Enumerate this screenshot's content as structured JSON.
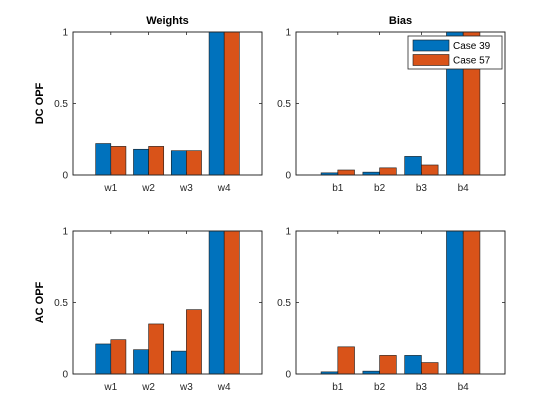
{
  "colors": {
    "Case 39": "#0072BD",
    "Case 57": "#D95319"
  },
  "chart_data": [
    {
      "type": "bar",
      "title": "Weights",
      "ylabel": "DC OPF",
      "categories": [
        "w1",
        "w2",
        "w3",
        "w4"
      ],
      "ylim": [
        0,
        1
      ],
      "yticks": [
        0,
        0.5,
        1
      ],
      "series": [
        {
          "name": "Case 39",
          "values": [
            0.22,
            0.18,
            0.17,
            1.0
          ]
        },
        {
          "name": "Case 57",
          "values": [
            0.2,
            0.2,
            0.17,
            1.0
          ]
        }
      ],
      "legend": null
    },
    {
      "type": "bar",
      "title": "Bias",
      "ylabel": "",
      "categories": [
        "b1",
        "b2",
        "b3",
        "b4"
      ],
      "ylim": [
        0,
        1
      ],
      "yticks": [
        0,
        0.5,
        1
      ],
      "series": [
        {
          "name": "Case 39",
          "values": [
            0.015,
            0.02,
            0.13,
            1.0
          ]
        },
        {
          "name": "Case 57",
          "values": [
            0.035,
            0.05,
            0.07,
            1.0
          ]
        }
      ],
      "legend": "top-right"
    },
    {
      "type": "bar",
      "title": "",
      "ylabel": "AC OPF",
      "categories": [
        "w1",
        "w2",
        "w3",
        "w4"
      ],
      "ylim": [
        0,
        1
      ],
      "yticks": [
        0,
        0.5,
        1
      ],
      "series": [
        {
          "name": "Case 39",
          "values": [
            0.21,
            0.17,
            0.16,
            1.0
          ]
        },
        {
          "name": "Case 57",
          "values": [
            0.24,
            0.35,
            0.45,
            1.0
          ]
        }
      ],
      "legend": null
    },
    {
      "type": "bar",
      "title": "",
      "ylabel": "",
      "categories": [
        "b1",
        "b2",
        "b3",
        "b4"
      ],
      "ylim": [
        0,
        1
      ],
      "yticks": [
        0,
        0.5,
        1
      ],
      "series": [
        {
          "name": "Case 39",
          "values": [
            0.015,
            0.02,
            0.13,
            1.0
          ]
        },
        {
          "name": "Case 57",
          "values": [
            0.19,
            0.13,
            0.08,
            1.0
          ]
        }
      ],
      "legend": null
    }
  ]
}
